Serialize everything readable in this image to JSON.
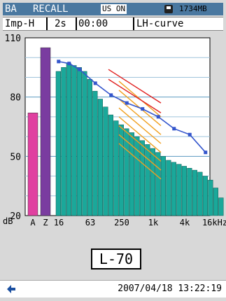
{
  "header": {
    "mode": "BA",
    "title": "RECALL",
    "us_indicator": "US ON",
    "memory": "1734MB"
  },
  "info": {
    "weighting": "Imp-H",
    "interval": "2s",
    "time": "00:00",
    "display": "LH-curve"
  },
  "chart_data": {
    "type": "bar",
    "ylim": [
      20,
      110
    ],
    "y_ticks": [
      110,
      80,
      50,
      20
    ],
    "y_unit": "dB",
    "x_labels": [
      "A",
      "Z",
      "16",
      "63",
      "250",
      "1k",
      "4k",
      "16kHz"
    ],
    "overall": [
      {
        "name": "A",
        "value": 72,
        "color": "#e040a0"
      },
      {
        "name": "Z",
        "value": 105,
        "color": "#7a3ca0"
      }
    ],
    "bands": [
      93,
      95,
      97,
      96,
      95,
      93,
      89,
      83,
      79,
      75,
      71,
      68,
      66,
      64,
      62,
      60,
      58,
      56,
      54,
      52,
      50,
      48,
      47,
      46,
      45,
      44,
      43,
      42,
      40,
      38,
      34,
      29
    ],
    "bar_color": "#1aa89a",
    "curve_L70": [
      {
        "x": 0,
        "y": 98
      },
      {
        "x": 2,
        "y": 97
      },
      {
        "x": 4,
        "y": 94
      },
      {
        "x": 7,
        "y": 87
      },
      {
        "x": 10,
        "y": 81
      },
      {
        "x": 13,
        "y": 77
      },
      {
        "x": 16,
        "y": 74
      },
      {
        "x": 19,
        "y": 70
      },
      {
        "x": 22,
        "y": 64
      },
      {
        "x": 25,
        "y": 61
      },
      {
        "x": 28,
        "y": 52
      }
    ],
    "grid": true
  },
  "curve_value": "L-70",
  "footer": {
    "timestamp": "2007/04/18 13:22:19"
  },
  "colors": {
    "header_bg": "#4a78a0",
    "curve_line": "#3355cc",
    "nc_lines": "#f0a020",
    "red_lines": "#e02020"
  }
}
